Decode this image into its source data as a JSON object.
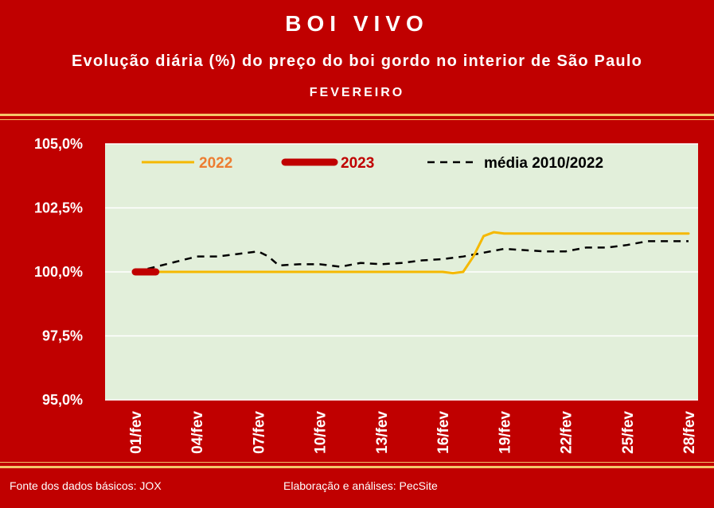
{
  "header": {
    "title": "BOI VIVO",
    "subtitle": "Evolução diária (%) do preço do boi gordo no interior de São Paulo",
    "month": "FEVEREIRO"
  },
  "footer": {
    "source": "Fonte dos dados básicos: JOX",
    "credits": "Elaboração e análises: PecSite"
  },
  "colors": {
    "background": "#c00000",
    "plot_area": "#e2efda",
    "series_2022": "#f5b800",
    "series_2023": "#c00000",
    "series_media": "#000000",
    "accent_rule": "#f4c66a"
  },
  "chart_data": {
    "type": "line",
    "title": "Evolução diária (%) do preço do boi gordo no interior de São Paulo",
    "subtitle": "FEVEREIRO",
    "y_tick_labels": [
      "105,0%",
      "102,5%",
      "100,0%",
      "97,5%",
      "95,0%"
    ],
    "x_tick_labels": [
      "01/fev",
      "04/fev",
      "07/fev",
      "10/fev",
      "13/fev",
      "16/fev",
      "19/fev",
      "22/fev",
      "25/fev",
      "28/fev"
    ],
    "x_tick_days": [
      1,
      4,
      7,
      10,
      13,
      16,
      19,
      22,
      25,
      28
    ],
    "ylim": [
      95,
      105
    ],
    "xlim": [
      1,
      28
    ],
    "grid": true,
    "legend_position": "top",
    "series": [
      {
        "name": "2022",
        "style": "solid",
        "points": [
          [
            1,
            100.0
          ],
          [
            16,
            100.0
          ],
          [
            16.5,
            99.95
          ],
          [
            17,
            100.0
          ],
          [
            17.5,
            100.6
          ],
          [
            18,
            101.4
          ],
          [
            18.5,
            101.55
          ],
          [
            19,
            101.5
          ],
          [
            28,
            101.5
          ]
        ]
      },
      {
        "name": "2023",
        "style": "thick",
        "points": [
          [
            1,
            100.0
          ],
          [
            2,
            100.0
          ]
        ]
      },
      {
        "name": "média 2010/2022",
        "style": "dashed",
        "points": [
          [
            1,
            100.0
          ],
          [
            2,
            100.2
          ],
          [
            3,
            100.4
          ],
          [
            4,
            100.6
          ],
          [
            5,
            100.6
          ],
          [
            6,
            100.7
          ],
          [
            7,
            100.8
          ],
          [
            7.5,
            100.6
          ],
          [
            8,
            100.25
          ],
          [
            9,
            100.3
          ],
          [
            10,
            100.3
          ],
          [
            11,
            100.2
          ],
          [
            12,
            100.35
          ],
          [
            13,
            100.3
          ],
          [
            14,
            100.35
          ],
          [
            15,
            100.45
          ],
          [
            16,
            100.5
          ],
          [
            17,
            100.6
          ],
          [
            18,
            100.75
          ],
          [
            19,
            100.9
          ],
          [
            20,
            100.85
          ],
          [
            21,
            100.8
          ],
          [
            22,
            100.8
          ],
          [
            23,
            100.95
          ],
          [
            24,
            100.95
          ],
          [
            25,
            101.05
          ],
          [
            26,
            101.2
          ],
          [
            27,
            101.2
          ],
          [
            28,
            101.2
          ]
        ]
      }
    ]
  }
}
